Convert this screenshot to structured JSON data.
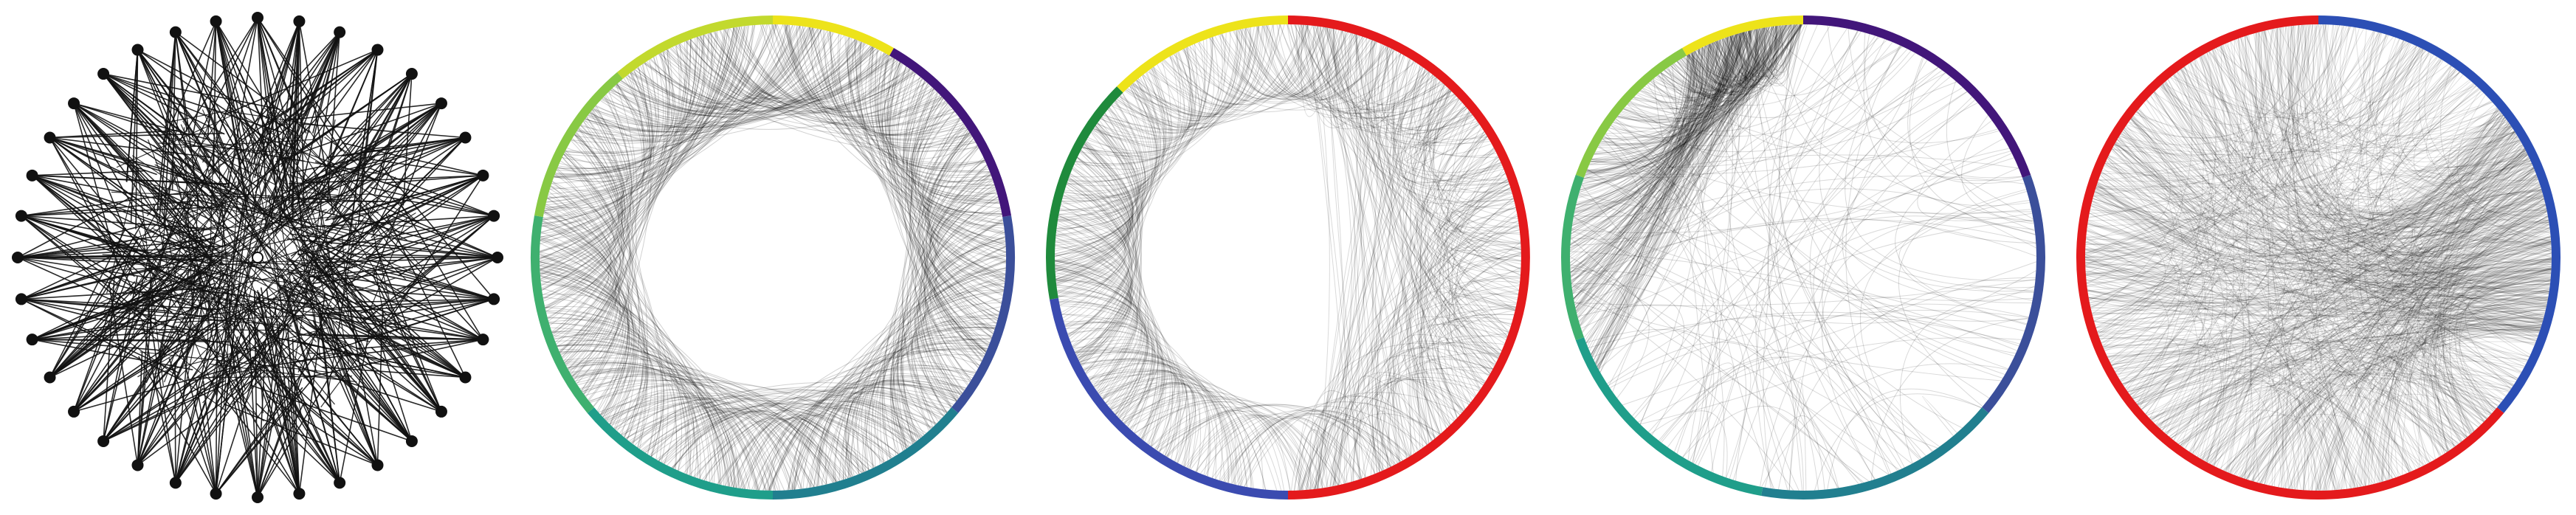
{
  "figure": {
    "description_none": true,
    "panels": [
      {
        "id": "panel-a",
        "kind": "node-link",
        "node_count": 36,
        "edge_color": "#111111",
        "node_color": "#111111",
        "edge_opacity": 0.9,
        "style": "spiky-star"
      },
      {
        "id": "panel-b",
        "kind": "circular-chord",
        "segments": [
          {
            "color": "#ede31a",
            "from_deg": -90,
            "to_deg": -60
          },
          {
            "color": "#42167a",
            "from_deg": -60,
            "to_deg": -10
          },
          {
            "color": "#3b4f9a",
            "from_deg": -10,
            "to_deg": 40
          },
          {
            "color": "#217f8f",
            "from_deg": 40,
            "to_deg": 90
          },
          {
            "color": "#1f9e8a",
            "from_deg": 90,
            "to_deg": 140
          },
          {
            "color": "#3fb06f",
            "from_deg": 140,
            "to_deg": 190
          },
          {
            "color": "#88c944",
            "from_deg": 190,
            "to_deg": 230
          },
          {
            "color": "#c2d92e",
            "from_deg": 230,
            "to_deg": 270
          }
        ],
        "edge_opacity": 0.18,
        "edge_count": 700,
        "pattern": "ring"
      },
      {
        "id": "panel-c",
        "kind": "circular-chord",
        "segments": [
          {
            "color": "#e41a1c",
            "from_deg": -90,
            "to_deg": 90
          },
          {
            "color": "#3b4bb0",
            "from_deg": 90,
            "to_deg": 170
          },
          {
            "color": "#1f8a3c",
            "from_deg": 170,
            "to_deg": 225
          },
          {
            "color": "#ede31a",
            "from_deg": 225,
            "to_deg": 270
          }
        ],
        "edge_opacity": 0.15,
        "edge_count": 650,
        "pattern": "half-ring"
      },
      {
        "id": "panel-d",
        "kind": "circular-chord",
        "segments": [
          {
            "color": "#42167a",
            "from_deg": -90,
            "to_deg": -20
          },
          {
            "color": "#3b4f9a",
            "from_deg": -20,
            "to_deg": 40
          },
          {
            "color": "#217f8f",
            "from_deg": 40,
            "to_deg": 100
          },
          {
            "color": "#1f9e8a",
            "from_deg": 100,
            "to_deg": 160
          },
          {
            "color": "#3fb06f",
            "from_deg": 160,
            "to_deg": 200
          },
          {
            "color": "#88c944",
            "from_deg": 200,
            "to_deg": 240
          },
          {
            "color": "#ede31a",
            "from_deg": 240,
            "to_deg": 270
          }
        ],
        "edge_opacity": 0.15,
        "edge_count": 520,
        "pattern": "hub"
      },
      {
        "id": "panel-e",
        "kind": "circular-chord",
        "segments": [
          {
            "color": "#e41a1c",
            "from_deg": -90,
            "to_deg": -90.1
          },
          {
            "color": "#2c4fb5",
            "from_deg": -90,
            "to_deg": 40
          },
          {
            "color": "#e41a1c",
            "from_deg": 40,
            "to_deg": 270
          }
        ],
        "edge_opacity": 0.12,
        "edge_count": 900,
        "pattern": "dense"
      }
    ]
  }
}
